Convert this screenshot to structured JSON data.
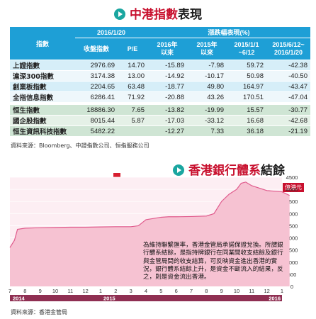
{
  "title1": {
    "red": "中港指數",
    "black": "表現"
  },
  "table": {
    "date_header": "2016/1/20",
    "change_header": "漲跌幅表現(%)",
    "columns": [
      "指數",
      "收盤指數",
      "P/E",
      "2016年\n以來",
      "2015年\n以來",
      "2015/1/1\n~6/12",
      "2015/6/12~\n2016/1/20"
    ],
    "groups": [
      {
        "style": "blue",
        "rows": [
          [
            "上證指數",
            "2976.69",
            "14.70",
            "-15.89",
            "-7.98",
            "59.72",
            "-42.38"
          ],
          [
            "滬深300指數",
            "3174.38",
            "13.00",
            "-14.92",
            "-10.17",
            "50.98",
            "-40.50"
          ],
          [
            "創業板指數",
            "2204.65",
            "63.48",
            "-18.77",
            "49.80",
            "164.97",
            "-43.47"
          ],
          [
            "全指信息指數",
            "6286.41",
            "71.92",
            "-20.88",
            "43.26",
            "170.51",
            "-47.04"
          ]
        ]
      },
      {
        "style": "green",
        "rows": [
          [
            "恒生指數",
            "18886.30",
            "7.65",
            "-13.82",
            "-19.99",
            "15.57",
            "-30.77"
          ],
          [
            "國企股指數",
            "8015.44",
            "5.87",
            "-17.03",
            "-33.12",
            "16.68",
            "-42.68"
          ],
          [
            "恒生資訊科技指數",
            "5482.22",
            "",
            "-12.27",
            "7.33",
            "36.18",
            "-21.19"
          ]
        ]
      }
    ]
  },
  "source1": "資料來源：Bloomberg、中證指數公司、恒指服務公司",
  "title2": {
    "red": "香港銀行體系",
    "black": "結餘"
  },
  "chart_data": {
    "type": "area",
    "unit": "億港元",
    "y_ticks": [
      0,
      500,
      1000,
      1500,
      2000,
      2500,
      3000,
      3500,
      4000,
      4500
    ],
    "ylim": [
      0,
      4500
    ],
    "x_tick_labels": [
      "7",
      "8",
      "9",
      "10",
      "11",
      "12",
      "1",
      "2",
      "3",
      "4",
      "5",
      "6",
      "7",
      "8",
      "9",
      "10",
      "11",
      "12",
      "1"
    ],
    "year_labels": [
      "2014",
      "2015",
      "2016"
    ],
    "series_color": "#f6c2d2",
    "line_color": "#e05a8c",
    "x": [
      0,
      0.3,
      0.5,
      1,
      2,
      3,
      4,
      5,
      6,
      7,
      8,
      8.5,
      9,
      9.5,
      10,
      10.5,
      11,
      12,
      13,
      13.5,
      14,
      14.5,
      15,
      15.3,
      15.6,
      16,
      17,
      18,
      18.5
    ],
    "values": [
      1600,
      1900,
      2350,
      2400,
      2420,
      2430,
      2440,
      2440,
      2450,
      2460,
      2460,
      2500,
      2750,
      2800,
      2850,
      2870,
      2870,
      2880,
      2900,
      3000,
      3500,
      3800,
      4000,
      4250,
      4300,
      4150,
      3950,
      3900,
      3750
    ],
    "annotation": "為維持聯繫匯率，香港金管局承諾保證兌換。所謂銀行體系結餘，是指持牌銀行在同業間收支結餘及銀行與金管局間的收支結算，可反映資金進出香港的實況，銀行體系結餘上升，是資金不斷流入的結果，反之，則是資金流出香港。"
  },
  "source2": "資料來源：香港金管局"
}
